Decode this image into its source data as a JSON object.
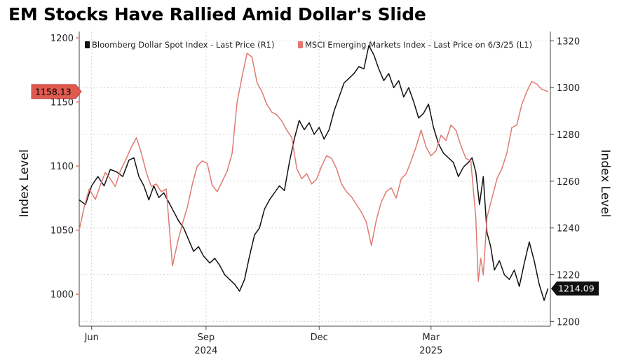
{
  "title": "EM Stocks Have Rallied Amid Dollar's Slide",
  "colors": {
    "dollar": "#111111",
    "msci": "#e07a72",
    "grid": "#c8c8c8",
    "tag_red": "#e05a50"
  },
  "chart_data": {
    "type": "line",
    "title": "EM Stocks Have Rallied Amid Dollar's Slide",
    "x_ticks": [
      {
        "label": "Jun",
        "date": "2024-06-01"
      },
      {
        "label": "Sep",
        "date": "2024-09-01"
      },
      {
        "label": "Dec",
        "date": "2024-12-01"
      },
      {
        "label": "Mar",
        "date": "2025-03-01"
      }
    ],
    "x_years": [
      {
        "label": "2024",
        "date": "2024-09-01"
      },
      {
        "label": "2025",
        "date": "2025-03-01"
      }
    ],
    "xlim": [
      "2024-05-22",
      "2025-06-05"
    ],
    "left_axis": {
      "label": "Index Level",
      "ylim": [
        975,
        1205
      ],
      "ticks": [
        1000,
        1050,
        1100,
        1150,
        1200
      ]
    },
    "right_axis": {
      "label": "Index Level",
      "ylim": [
        1198,
        1324
      ],
      "ticks": [
        1200,
        1220,
        1240,
        1260,
        1280,
        1300,
        1320
      ]
    },
    "legend_position": "top",
    "series": [
      {
        "name": "Bloomberg Dollar Spot Index - Last Price (R1)",
        "legend_label": "Bloomberg Dollar Spot Index - Last Price (R1)",
        "axis": "right",
        "color": "#111111",
        "last_value": "1214.09",
        "points": [
          [
            "2024-05-22",
            1252
          ],
          [
            "2024-05-27",
            1250
          ],
          [
            "2024-06-01",
            1258
          ],
          [
            "2024-06-06",
            1262
          ],
          [
            "2024-06-11",
            1258
          ],
          [
            "2024-06-16",
            1265
          ],
          [
            "2024-06-21",
            1264
          ],
          [
            "2024-06-26",
            1262
          ],
          [
            "2024-07-01",
            1269
          ],
          [
            "2024-07-05",
            1270
          ],
          [
            "2024-07-09",
            1262
          ],
          [
            "2024-07-13",
            1258
          ],
          [
            "2024-07-17",
            1252
          ],
          [
            "2024-07-21",
            1258
          ],
          [
            "2024-07-25",
            1253
          ],
          [
            "2024-07-29",
            1255
          ],
          [
            "2024-08-02",
            1251
          ],
          [
            "2024-08-06",
            1247
          ],
          [
            "2024-08-10",
            1243
          ],
          [
            "2024-08-14",
            1240
          ],
          [
            "2024-08-18",
            1235
          ],
          [
            "2024-08-22",
            1230
          ],
          [
            "2024-08-26",
            1232
          ],
          [
            "2024-08-30",
            1228
          ],
          [
            "2024-09-04",
            1225
          ],
          [
            "2024-09-08",
            1227
          ],
          [
            "2024-09-12",
            1224
          ],
          [
            "2024-09-16",
            1220
          ],
          [
            "2024-09-20",
            1218
          ],
          [
            "2024-09-24",
            1216
          ],
          [
            "2024-09-28",
            1213
          ],
          [
            "2024-10-02",
            1218
          ],
          [
            "2024-10-06",
            1228
          ],
          [
            "2024-10-10",
            1237
          ],
          [
            "2024-10-14",
            1240
          ],
          [
            "2024-10-18",
            1248
          ],
          [
            "2024-10-22",
            1252
          ],
          [
            "2024-10-26",
            1255
          ],
          [
            "2024-10-30",
            1258
          ],
          [
            "2024-11-03",
            1256
          ],
          [
            "2024-11-07",
            1268
          ],
          [
            "2024-11-11",
            1278
          ],
          [
            "2024-11-15",
            1286
          ],
          [
            "2024-11-19",
            1282
          ],
          [
            "2024-11-23",
            1285
          ],
          [
            "2024-11-27",
            1280
          ],
          [
            "2024-12-01",
            1283
          ],
          [
            "2024-12-05",
            1278
          ],
          [
            "2024-12-09",
            1282
          ],
          [
            "2024-12-13",
            1290
          ],
          [
            "2024-12-17",
            1296
          ],
          [
            "2024-12-21",
            1302
          ],
          [
            "2024-12-25",
            1304
          ],
          [
            "2024-12-29",
            1306
          ],
          [
            "2025-01-02",
            1309
          ],
          [
            "2025-01-06",
            1308
          ],
          [
            "2025-01-10",
            1318
          ],
          [
            "2025-01-14",
            1314
          ],
          [
            "2025-01-18",
            1308
          ],
          [
            "2025-01-22",
            1303
          ],
          [
            "2025-01-26",
            1306
          ],
          [
            "2025-01-30",
            1300
          ],
          [
            "2025-02-03",
            1303
          ],
          [
            "2025-02-07",
            1296
          ],
          [
            "2025-02-11",
            1300
          ],
          [
            "2025-02-15",
            1294
          ],
          [
            "2025-02-19",
            1287
          ],
          [
            "2025-02-23",
            1289
          ],
          [
            "2025-02-27",
            1293
          ],
          [
            "2025-03-03",
            1283
          ],
          [
            "2025-03-07",
            1276
          ],
          [
            "2025-03-11",
            1272
          ],
          [
            "2025-03-15",
            1270
          ],
          [
            "2025-03-19",
            1268
          ],
          [
            "2025-03-23",
            1262
          ],
          [
            "2025-03-27",
            1266
          ],
          [
            "2025-03-31",
            1268
          ],
          [
            "2025-04-03",
            1270
          ],
          [
            "2025-04-06",
            1264
          ],
          [
            "2025-04-09",
            1250
          ],
          [
            "2025-04-12",
            1262
          ],
          [
            "2025-04-15",
            1238
          ],
          [
            "2025-04-18",
            1232
          ],
          [
            "2025-04-21",
            1222
          ],
          [
            "2025-04-25",
            1226
          ],
          [
            "2025-04-29",
            1220
          ],
          [
            "2025-05-03",
            1218
          ],
          [
            "2025-05-07",
            1222
          ],
          [
            "2025-05-11",
            1215
          ],
          [
            "2025-05-15",
            1225
          ],
          [
            "2025-05-19",
            1234
          ],
          [
            "2025-05-23",
            1226
          ],
          [
            "2025-05-27",
            1216
          ],
          [
            "2025-05-31",
            1209
          ],
          [
            "2025-06-03",
            1214.09
          ]
        ]
      },
      {
        "name": "MSCI Emerging Markets Index - Last Price on 6/3/25 (L1)",
        "legend_label": "MSCI Emerging Markets Index - Last Price on 6/3/25 (L1)",
        "axis": "left",
        "color": "#e07a72",
        "last_value": "1158.13",
        "points": [
          [
            "2024-05-22",
            1050
          ],
          [
            "2024-05-26",
            1068
          ],
          [
            "2024-05-30",
            1082
          ],
          [
            "2024-06-04",
            1074
          ],
          [
            "2024-06-08",
            1085
          ],
          [
            "2024-06-12",
            1095
          ],
          [
            "2024-06-16",
            1090
          ],
          [
            "2024-06-20",
            1084
          ],
          [
            "2024-06-24",
            1096
          ],
          [
            "2024-06-28",
            1104
          ],
          [
            "2024-07-03",
            1115
          ],
          [
            "2024-07-07",
            1122
          ],
          [
            "2024-07-11",
            1110
          ],
          [
            "2024-07-15",
            1095
          ],
          [
            "2024-07-19",
            1084
          ],
          [
            "2024-07-23",
            1086
          ],
          [
            "2024-07-27",
            1080
          ],
          [
            "2024-07-31",
            1082
          ],
          [
            "2024-08-05",
            1022
          ],
          [
            "2024-08-09",
            1040
          ],
          [
            "2024-08-13",
            1055
          ],
          [
            "2024-08-17",
            1068
          ],
          [
            "2024-08-21",
            1086
          ],
          [
            "2024-08-25",
            1100
          ],
          [
            "2024-08-29",
            1104
          ],
          [
            "2024-09-02",
            1102
          ],
          [
            "2024-09-06",
            1085
          ],
          [
            "2024-09-10",
            1080
          ],
          [
            "2024-09-14",
            1088
          ],
          [
            "2024-09-18",
            1096
          ],
          [
            "2024-09-22",
            1110
          ],
          [
            "2024-09-26",
            1150
          ],
          [
            "2024-09-30",
            1170
          ],
          [
            "2024-10-04",
            1188
          ],
          [
            "2024-10-08",
            1185
          ],
          [
            "2024-10-12",
            1165
          ],
          [
            "2024-10-16",
            1158
          ],
          [
            "2024-10-20",
            1148
          ],
          [
            "2024-10-24",
            1142
          ],
          [
            "2024-10-28",
            1140
          ],
          [
            "2024-11-01",
            1135
          ],
          [
            "2024-11-05",
            1128
          ],
          [
            "2024-11-09",
            1122
          ],
          [
            "2024-11-13",
            1098
          ],
          [
            "2024-11-17",
            1090
          ],
          [
            "2024-11-21",
            1094
          ],
          [
            "2024-11-25",
            1086
          ],
          [
            "2024-11-29",
            1090
          ],
          [
            "2024-12-03",
            1100
          ],
          [
            "2024-12-07",
            1108
          ],
          [
            "2024-12-11",
            1106
          ],
          [
            "2024-12-15",
            1098
          ],
          [
            "2024-12-19",
            1086
          ],
          [
            "2024-12-23",
            1080
          ],
          [
            "2024-12-27",
            1076
          ],
          [
            "2024-12-31",
            1070
          ],
          [
            "2025-01-04",
            1064
          ],
          [
            "2025-01-08",
            1056
          ],
          [
            "2025-01-12",
            1038
          ],
          [
            "2025-01-16",
            1058
          ],
          [
            "2025-01-20",
            1072
          ],
          [
            "2025-01-24",
            1080
          ],
          [
            "2025-01-28",
            1083
          ],
          [
            "2025-02-01",
            1075
          ],
          [
            "2025-02-05",
            1090
          ],
          [
            "2025-02-09",
            1094
          ],
          [
            "2025-02-13",
            1104
          ],
          [
            "2025-02-17",
            1115
          ],
          [
            "2025-02-21",
            1128
          ],
          [
            "2025-02-25",
            1115
          ],
          [
            "2025-03-01",
            1108
          ],
          [
            "2025-03-05",
            1112
          ],
          [
            "2025-03-09",
            1124
          ],
          [
            "2025-03-13",
            1120
          ],
          [
            "2025-03-17",
            1132
          ],
          [
            "2025-03-21",
            1128
          ],
          [
            "2025-03-25",
            1116
          ],
          [
            "2025-03-29",
            1106
          ],
          [
            "2025-04-02",
            1104
          ],
          [
            "2025-04-06",
            1060
          ],
          [
            "2025-04-08",
            1010
          ],
          [
            "2025-04-10",
            1028
          ],
          [
            "2025-04-12",
            1015
          ],
          [
            "2025-04-15",
            1060
          ],
          [
            "2025-04-19",
            1075
          ],
          [
            "2025-04-23",
            1090
          ],
          [
            "2025-04-27",
            1098
          ],
          [
            "2025-05-01",
            1110
          ],
          [
            "2025-05-05",
            1130
          ],
          [
            "2025-05-09",
            1132
          ],
          [
            "2025-05-13",
            1148
          ],
          [
            "2025-05-17",
            1158
          ],
          [
            "2025-05-21",
            1166
          ],
          [
            "2025-05-25",
            1164
          ],
          [
            "2025-05-29",
            1160
          ],
          [
            "2025-06-03",
            1158.13
          ]
        ]
      }
    ]
  }
}
